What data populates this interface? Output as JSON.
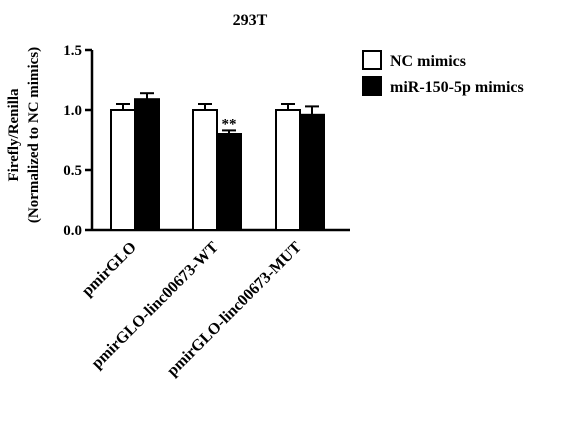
{
  "chart_data": {
    "type": "bar",
    "title": "293T",
    "ylabel_line1": "Firefly/Renilla",
    "ylabel_line2": "(Normalized to NC mimics)",
    "xlabel": "",
    "ylim": [
      0,
      1.5
    ],
    "yticks": [
      "0.0",
      "0.5",
      "1.0",
      "1.5"
    ],
    "categories": [
      "pmirGLO",
      "pmirGLO-linc00673-WT",
      "pmirGLO-linc00673-MUT"
    ],
    "series": [
      {
        "name": "NC mimics",
        "color": "#ffffff",
        "values": [
          1.0,
          1.0,
          1.0
        ],
        "errors": [
          0.05,
          0.05,
          0.05
        ]
      },
      {
        "name": "miR-150-5p mimics",
        "color": "#000000",
        "values": [
          1.09,
          0.8,
          0.96
        ],
        "errors": [
          0.05,
          0.03,
          0.07
        ]
      }
    ],
    "annotations": [
      {
        "text": "**",
        "category": "pmirGLO-linc00673-WT",
        "series": "miR-150-5p mimics"
      }
    ],
    "legend_position": "top-right",
    "grid": false
  }
}
